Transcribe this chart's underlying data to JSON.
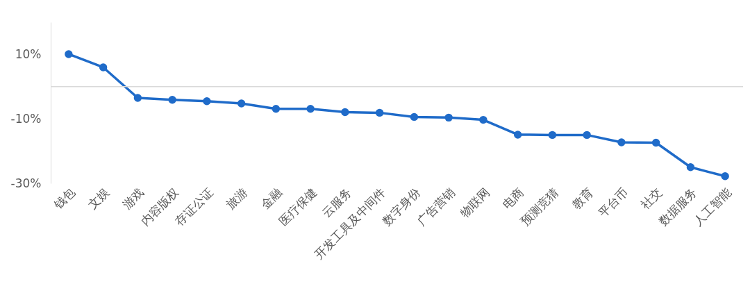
{
  "chart_data": {
    "type": "line",
    "categories": [
      "钱包",
      "文娱",
      "游戏",
      "内容版权",
      "存证公证",
      "旅游",
      "金融",
      "医疗保健",
      "云服务",
      "开发工具及中间件",
      "数字身份",
      "广告营销",
      "物联网",
      "电商",
      "预测竞猜",
      "教育",
      "平台币",
      "社交",
      "数据服务",
      "人工智能"
    ],
    "series": [
      {
        "color": "#1f6bc9",
        "values": [
          10.1,
          6.0,
          -3.5,
          -4.1,
          -4.5,
          -5.2,
          -6.9,
          -6.9,
          -7.9,
          -8.1,
          -9.4,
          -9.6,
          -10.3,
          -14.9,
          -15.0,
          -15.0,
          -17.3,
          -17.4,
          -25.0,
          -27.8
        ]
      }
    ],
    "ylim": [
      -30,
      20
    ],
    "yticks": [
      {
        "value": 10,
        "label": "10%"
      },
      {
        "value": -10,
        "label": "-10%"
      },
      {
        "value": -30,
        "label": "-30%"
      }
    ],
    "ref_lines": [
      {
        "axis": "y",
        "value": 0,
        "color": "#d9d9d9"
      }
    ],
    "grid": false,
    "legend": false,
    "marker": "circle",
    "line_style": "solid"
  }
}
